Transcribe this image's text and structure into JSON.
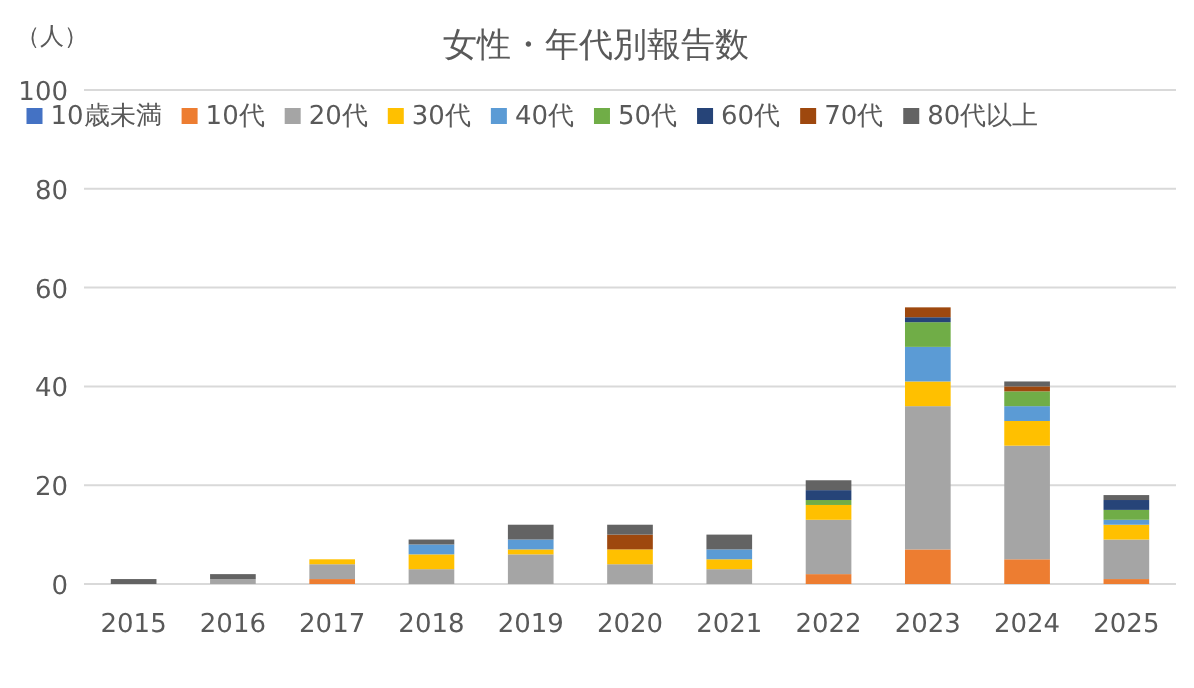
{
  "chart_data": {
    "type": "bar",
    "stacked": true,
    "title": "女性・年代別報告数",
    "ylabel": "（人）",
    "categories": [
      "2015",
      "2016",
      "2017",
      "2018",
      "2019",
      "2020",
      "2021",
      "2022",
      "2023",
      "2024",
      "2025"
    ],
    "ylim": [
      0,
      100
    ],
    "yticks": [
      0,
      20,
      40,
      60,
      80,
      100
    ],
    "grid": "y",
    "legend": "top",
    "series": [
      {
        "name": "10歳未満",
        "color": "#4472c4",
        "values": [
          0,
          0,
          0,
          0,
          0,
          0,
          0,
          0,
          0,
          0,
          0
        ]
      },
      {
        "name": "10代",
        "color": "#ed7d31",
        "values": [
          0,
          0,
          1,
          0,
          0,
          0,
          0,
          2,
          7,
          5,
          1
        ]
      },
      {
        "name": "20代",
        "color": "#a5a5a5",
        "values": [
          0,
          1,
          3,
          3,
          6,
          4,
          3,
          11,
          29,
          23,
          8
        ]
      },
      {
        "name": "30代",
        "color": "#ffc000",
        "values": [
          0,
          0,
          1,
          3,
          1,
          3,
          2,
          3,
          5,
          5,
          3
        ]
      },
      {
        "name": "40代",
        "color": "#5b9bd5",
        "values": [
          0,
          0,
          0,
          2,
          2,
          0,
          2,
          0,
          7,
          3,
          1
        ]
      },
      {
        "name": "50代",
        "color": "#70ad47",
        "values": [
          0,
          0,
          0,
          0,
          0,
          0,
          0,
          1,
          5,
          3,
          2
        ]
      },
      {
        "name": "60代",
        "color": "#264478",
        "values": [
          0,
          0,
          0,
          0,
          0,
          0,
          0,
          2,
          1,
          0,
          2
        ]
      },
      {
        "name": "70代",
        "color": "#9e480e",
        "values": [
          0,
          0,
          0,
          0,
          0,
          3,
          0,
          0,
          2,
          1,
          0
        ]
      },
      {
        "name": "80代以上",
        "color": "#636363",
        "values": [
          1,
          1,
          0,
          1,
          3,
          2,
          3,
          2,
          0,
          1,
          1
        ]
      }
    ]
  }
}
